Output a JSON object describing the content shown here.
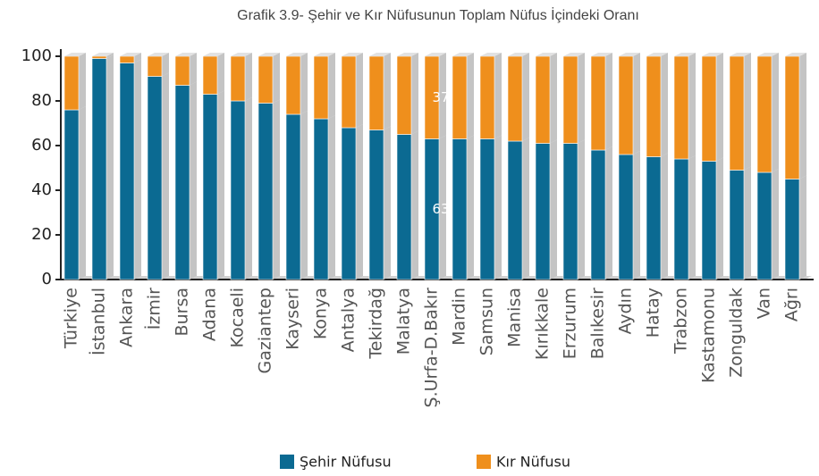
{
  "chart_data": {
    "type": "stacked_bar_3d",
    "title": "Grafik 3.9- Şehir ve Kır Nüfusunun Toplam Nüfus İçindeki Oranı",
    "categories": [
      "Türkiye",
      "İstanbul",
      "Ankara",
      "İzmir",
      "Bursa",
      "Adana",
      "Kocaeli",
      "Gaziantep",
      "Kayseri",
      "Konya",
      "Antalya",
      "Tekirdağ",
      "Malatya",
      "Ş.Urfa-D.Bakır",
      "Mardin",
      "Samsun",
      "Manisa",
      "Kırıkkale",
      "Erzurum",
      "Balıkesir",
      "Aydın",
      "Hatay",
      "Trabzon",
      "Kastamonu",
      "Zonguldak",
      "Van",
      "Ağrı"
    ],
    "series": [
      {
        "name": "Şehir Nüfusu",
        "color": "#0b6a92",
        "values": [
          76,
          99,
          97,
          91,
          87,
          83,
          80,
          79,
          74,
          72,
          68,
          67,
          65,
          63,
          63,
          63,
          62,
          61,
          61,
          58,
          56,
          55,
          54,
          53,
          49,
          48,
          45
        ],
        "value_labels": [
          null,
          null,
          null,
          null,
          null,
          null,
          null,
          null,
          null,
          null,
          null,
          null,
          null,
          "63",
          null,
          null,
          null,
          null,
          null,
          null,
          null,
          null,
          null,
          null,
          null,
          null,
          null
        ]
      },
      {
        "name": "Kır Nüfusu",
        "color": "#ef8f1c",
        "values": [
          24,
          1,
          3,
          9,
          13,
          17,
          20,
          21,
          26,
          28,
          32,
          33,
          35,
          37,
          37,
          37,
          38,
          39,
          39,
          42,
          44,
          45,
          46,
          47,
          51,
          52,
          55
        ],
        "value_labels": [
          null,
          null,
          null,
          null,
          null,
          null,
          null,
          null,
          null,
          null,
          null,
          null,
          null,
          "37",
          null,
          null,
          null,
          null,
          null,
          null,
          null,
          null,
          null,
          null,
          null,
          null,
          null
        ]
      }
    ],
    "ylim": [
      0,
      100
    ],
    "yticks": [
      0,
      20,
      40,
      60,
      80,
      100
    ],
    "legend": "bottom"
  }
}
